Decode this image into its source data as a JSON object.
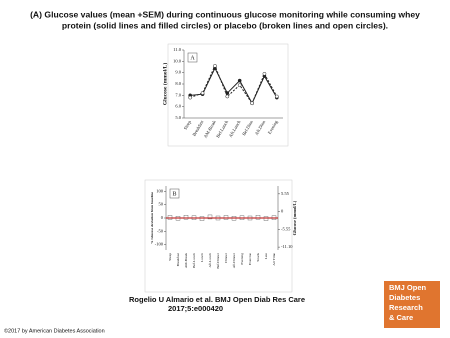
{
  "title": [
    "(A) Glucose values (mean +SEM) during continuous glucose monitoring while consuming whey",
    "protein (solid lines and filled circles) or placebo (broken lines and open circles)."
  ],
  "chart_data": [
    {
      "type": "line",
      "panel": "A",
      "ylabel": "Glucose (mmol/L)",
      "categories": [
        "Sleep",
        "Breakfast",
        "AM-Break",
        "Bef.Lunch",
        "Aft.Lunch",
        "Bef.Dinn",
        "Aft.Dinn",
        "Evening"
      ],
      "ylim": [
        5,
        11
      ],
      "yticks": [
        {
          "value": 5,
          "label": "5.0"
        },
        {
          "value": 6,
          "label": "6.0"
        },
        {
          "value": 7,
          "label": "7.0"
        },
        {
          "value": 8,
          "label": "8.0"
        },
        {
          "value": 9,
          "label": "9.0"
        },
        {
          "value": 10,
          "label": "10.0"
        },
        {
          "value": 11,
          "label": "11.0"
        }
      ],
      "series": [
        {
          "color": "#222222",
          "dashed": false,
          "marker": "filled",
          "values": [
            7.0,
            7.1,
            9.4,
            7.2,
            8.3,
            6.3,
            8.7,
            6.8
          ]
        },
        {
          "color": "#222222",
          "dashed": true,
          "marker": "open",
          "values": [
            6.8,
            7.2,
            9.6,
            6.9,
            7.9,
            6.3,
            8.9,
            6.9
          ]
        }
      ]
    },
    {
      "type": "dot",
      "panel": "B",
      "ylabel": "% Glucose deviation from baseline",
      "y2label": "Glucose (mmol/L)",
      "categories": [
        "Sleep",
        "Breakfast",
        "AM-Break",
        "Bef.Lunch",
        "Lunch",
        "Aft.Lunch",
        "Bef.Dinner",
        "Dinner",
        "Aft.Dinner",
        "Evening",
        "Exercise",
        "Snack",
        "Late",
        "All Time"
      ],
      "ylim": [
        -120,
        120
      ],
      "yticks": [
        -100,
        -50,
        0,
        50,
        100
      ],
      "y2lim": [
        -12,
        8
      ],
      "y2ticks": [
        {
          "value": -11.1,
          "label": "-11.10"
        },
        -5.55,
        0,
        5.55
      ],
      "hline": 0,
      "hline_color": "#c00000",
      "color": "#555555",
      "values": [
        2,
        -1,
        3,
        1,
        -2,
        4,
        0,
        2,
        -1,
        1,
        0,
        3,
        -2,
        1
      ]
    }
  ],
  "citation": [
    "Rogelio U Almario et al. BMJ Open Diab Res Care",
    "2017;5:e000420"
  ],
  "logo": [
    "BMJ Open",
    "Diabetes",
    "Research",
    "& Care"
  ],
  "copyright": "©2017 by American Diabetes Association"
}
